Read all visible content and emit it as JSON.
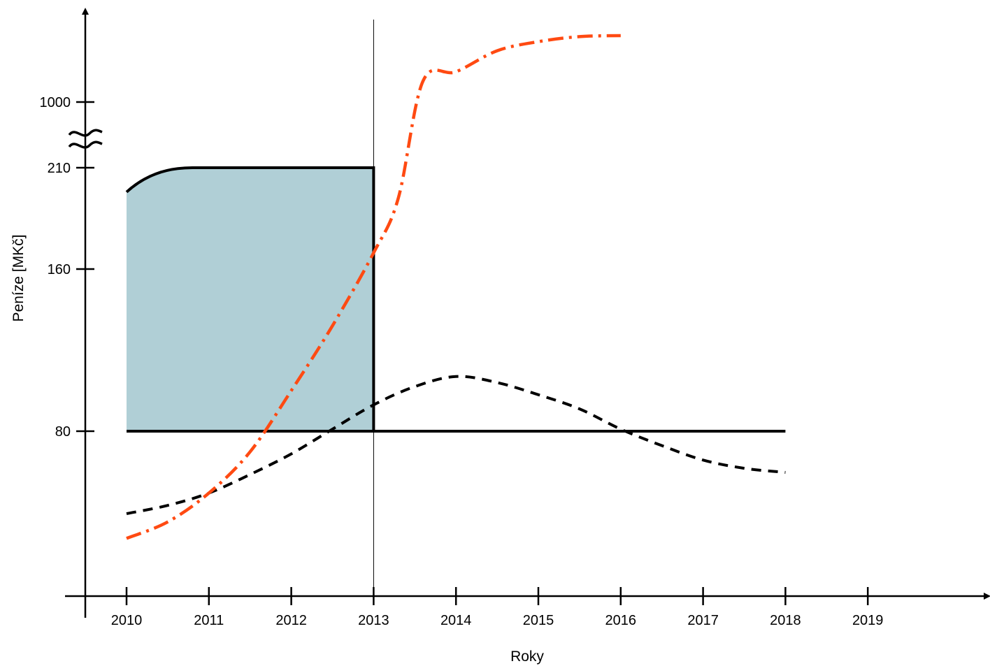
{
  "chart_data": {
    "type": "line",
    "xlabel": "Roky",
    "ylabel": "Peníze [MKč]",
    "x_ticks": [
      "2010",
      "2011",
      "2012",
      "2013",
      "2014",
      "2015",
      "2016",
      "2017",
      "2018",
      "2019"
    ],
    "y_ticks": [
      "80",
      "160",
      "210",
      "1000"
    ],
    "y_axis_break": "between 210 and 1000",
    "grid": false,
    "legend": "none",
    "colors": {
      "shaded_area_fill": "#b0cfd6",
      "solid_line": "#000000",
      "dashed_line": "#000000",
      "dash_dot_line": "#ff4a12",
      "reference_line": "#000000"
    },
    "reference_line_x": 2013,
    "series": [
      {
        "style": "solid",
        "points": [
          [
            2010,
            198
          ],
          [
            2010.3,
            207
          ],
          [
            2010.8,
            210
          ],
          [
            2013,
            210
          ],
          [
            2013,
            80
          ],
          [
            2018,
            80
          ]
        ]
      },
      {
        "style": "dashed",
        "points": [
          [
            2010,
            40
          ],
          [
            2010.5,
            44
          ],
          [
            2011,
            50
          ],
          [
            2011.5,
            59
          ],
          [
            2012,
            69
          ],
          [
            2012.5,
            81
          ],
          [
            2013,
            93
          ],
          [
            2013.5,
            102
          ],
          [
            2014,
            107
          ],
          [
            2014.5,
            104
          ],
          [
            2015,
            98
          ],
          [
            2015.5,
            91
          ],
          [
            2016,
            81
          ],
          [
            2016.5,
            73
          ],
          [
            2017,
            66
          ],
          [
            2017.5,
            62
          ],
          [
            2018,
            60
          ]
        ]
      },
      {
        "style": "dash-dot",
        "points": [
          [
            2010,
            28
          ],
          [
            2010.5,
            36
          ],
          [
            2011,
            50
          ],
          [
            2011.5,
            70
          ],
          [
            2012,
            100
          ],
          [
            2012.5,
            132
          ],
          [
            2013,
            168
          ],
          [
            2013.3,
            195
          ],
          [
            2013.6,
            1210
          ],
          [
            2014,
            1300
          ],
          [
            2014.5,
            1510
          ],
          [
            2015,
            1600
          ],
          [
            2015.5,
            1650
          ],
          [
            2016,
            1660
          ]
        ]
      }
    ]
  }
}
